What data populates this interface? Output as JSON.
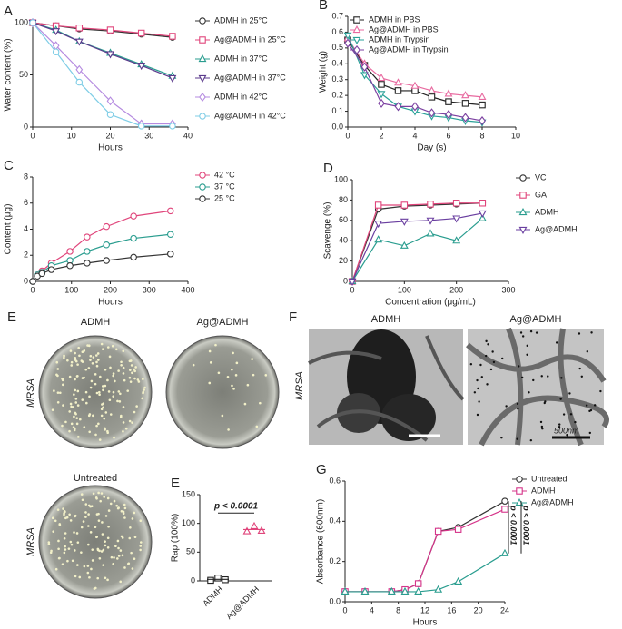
{
  "chart_data": [
    {
      "type": "line",
      "panel": "A",
      "xlabel": "Hours",
      "ylabel": "Water content (%)",
      "xlim": [
        0,
        40
      ],
      "xticks": [
        0,
        10,
        20,
        30,
        40
      ],
      "ylim": [
        0,
        100
      ],
      "yticks": [
        0,
        50,
        100
      ],
      "legend": "outside right",
      "x": [
        0,
        6,
        12,
        20,
        28,
        36
      ],
      "series": [
        {
          "name": "ADMH in 25°C",
          "color": "#333333",
          "marker": "circle",
          "values": [
            100,
            97,
            94,
            92,
            89,
            86
          ]
        },
        {
          "name": "Ag@ADMH in 25°C",
          "color": "#e0457b",
          "marker": "square",
          "values": [
            100,
            97,
            95,
            93,
            90,
            87
          ]
        },
        {
          "name": "ADMH in 37°C",
          "color": "#2a9d8f",
          "marker": "triangle",
          "values": [
            100,
            93,
            82,
            71,
            60,
            49
          ]
        },
        {
          "name": "Ag@ADMH in 37°C",
          "color": "#5b3a8c",
          "marker": "triangle-down",
          "values": [
            100,
            92,
            82,
            70,
            59,
            47
          ]
        },
        {
          "name": "ADMH in 42°C",
          "color": "#b58be0",
          "marker": "diamond",
          "values": [
            100,
            78,
            55,
            25,
            3,
            3
          ]
        },
        {
          "name": "Ag@ADMH in 42°C",
          "color": "#7fcde6",
          "marker": "circle",
          "values": [
            100,
            72,
            43,
            12,
            1,
            1
          ]
        }
      ]
    },
    {
      "type": "line",
      "panel": "B",
      "xlabel": "Day (s)",
      "ylabel": "Weight (g)",
      "xlim": [
        0,
        10
      ],
      "xticks": [
        0,
        2,
        4,
        6,
        8,
        10
      ],
      "ylim": [
        0,
        0.7
      ],
      "yticks": [
        {
          "value": 0,
          "label": "0.0"
        },
        0.1,
        0.2,
        0.3,
        0.4,
        0.5,
        0.6,
        0.7
      ],
      "legend": "upper left",
      "x": [
        0,
        1,
        2,
        3,
        4,
        5,
        6,
        7,
        8
      ],
      "series": [
        {
          "name": "ADMH in PBS",
          "color": "#222222",
          "marker": "square",
          "values": [
            0.55,
            0.39,
            0.27,
            0.23,
            0.23,
            0.19,
            0.16,
            0.15,
            0.14
          ]
        },
        {
          "name": "Ag@ADMH in PBS",
          "color": "#e86aa0",
          "marker": "triangle",
          "values": [
            0.56,
            0.4,
            0.31,
            0.28,
            0.26,
            0.23,
            0.21,
            0.2,
            0.19
          ]
        },
        {
          "name": "ADMH in Trypsin",
          "color": "#2aa198",
          "marker": "triangle-down",
          "values": [
            0.58,
            0.33,
            0.21,
            0.13,
            0.1,
            0.07,
            0.06,
            0.04,
            0.03
          ]
        },
        {
          "name": "Ag@ADMH in Trypsin",
          "color": "#7b3fa0",
          "marker": "diamond",
          "values": [
            0.53,
            0.38,
            0.15,
            0.13,
            0.13,
            0.09,
            0.08,
            0.06,
            0.04
          ]
        }
      ]
    },
    {
      "type": "line",
      "panel": "C",
      "xlabel": "Hours",
      "ylabel": "Content (μg)",
      "xlim": [
        0,
        400
      ],
      "xticks": [
        0,
        100,
        200,
        300,
        400
      ],
      "ylim": [
        0,
        8
      ],
      "yticks": [
        0,
        2,
        4,
        6,
        8
      ],
      "legend": "outside right",
      "x": [
        0,
        12,
        24,
        48,
        96,
        140,
        190,
        260,
        355
      ],
      "series": [
        {
          "name": "42 °C",
          "color": "#e0457b",
          "marker": "circle",
          "values": [
            0,
            0.5,
            0.8,
            1.4,
            2.3,
            3.4,
            4.2,
            5.0,
            5.4
          ]
        },
        {
          "name": "37 °C",
          "color": "#2a9d8f",
          "marker": "circle",
          "values": [
            0,
            0.5,
            0.7,
            1.2,
            1.6,
            2.3,
            2.8,
            3.3,
            3.6
          ]
        },
        {
          "name": "25 °C",
          "color": "#333333",
          "marker": "circle",
          "values": [
            0,
            0.4,
            0.6,
            0.9,
            1.2,
            1.4,
            1.6,
            1.85,
            2.1
          ]
        }
      ]
    },
    {
      "type": "line",
      "panel": "D",
      "xlabel": "Concentration (μg/mL)",
      "ylabel": "Scavenge (%)",
      "xlim": [
        0,
        300
      ],
      "xticks": [
        0,
        100,
        200,
        300
      ],
      "ylim": [
        0,
        100
      ],
      "yticks": [
        0,
        20,
        40,
        60,
        80,
        100
      ],
      "legend": "outside right",
      "x": [
        0,
        50,
        100,
        150,
        200,
        250
      ],
      "series": [
        {
          "name": "VC",
          "color": "#333333",
          "marker": "circle",
          "values": [
            0,
            71,
            74,
            75,
            76,
            77
          ]
        },
        {
          "name": "GA",
          "color": "#e0457b",
          "marker": "square",
          "values": [
            0,
            75,
            75,
            76,
            77,
            77
          ]
        },
        {
          "name": "ADMH",
          "color": "#2a9d8f",
          "marker": "triangle",
          "values": [
            0,
            41,
            35,
            47,
            40,
            62
          ]
        },
        {
          "name": "Ag@ADMH",
          "color": "#6a3fa0",
          "marker": "triangle-down",
          "values": [
            0,
            57,
            59,
            60,
            62,
            67
          ]
        }
      ]
    },
    {
      "type": "dot",
      "panel": "E",
      "ylabel": "Rap (100%)",
      "ylim": [
        0,
        150
      ],
      "yticks": [
        0,
        50,
        100,
        150
      ],
      "annotation": "p < 0.0001",
      "categories": [
        "ADMH",
        "Ag@ADMH"
      ],
      "colors": [
        "#222222",
        "#e0457b"
      ],
      "markers": [
        "square",
        "triangle"
      ],
      "values": [
        [
          1,
          5,
          2
        ],
        [
          86,
          95,
          87
        ]
      ]
    },
    {
      "type": "line",
      "panel": "G",
      "xlabel": "Hours",
      "ylabel": "Absorbance (600nm)",
      "xlim": [
        0,
        24
      ],
      "xticks": [
        0,
        4,
        8,
        12,
        16,
        20,
        24
      ],
      "ylim": [
        0,
        0.6
      ],
      "yticks": [
        {
          "value": 0,
          "label": "0.0"
        },
        0.2,
        0.4,
        0.6
      ],
      "legend": "outside right",
      "annotations": [
        "p < 0.0001",
        "p < 0.0001"
      ],
      "x": [
        0,
        3,
        7,
        9,
        11,
        14,
        17,
        24
      ],
      "series": [
        {
          "name": "Untreated",
          "color": "#333333",
          "marker": "circle",
          "values": [
            0.05,
            0.05,
            0.05,
            0.06,
            0.09,
            0.35,
            0.37,
            0.5
          ]
        },
        {
          "name": "ADMH",
          "color": "#d6348a",
          "marker": "square",
          "values": [
            0.05,
            0.05,
            0.05,
            0.06,
            0.09,
            0.35,
            0.36,
            0.46
          ]
        },
        {
          "name": "Ag@ADMH",
          "color": "#2a9d8f",
          "marker": "triangle",
          "values": [
            0.05,
            0.05,
            0.05,
            0.05,
            0.05,
            0.06,
            0.1,
            0.24
          ]
        }
      ]
    }
  ],
  "images": {
    "plates": {
      "panel": "E",
      "top_left": "ADMH",
      "top_right": "Ag@ADMH",
      "bottom": "Untreated",
      "strain": "MRSA",
      "strain_bottom": "MRSA"
    },
    "tem": {
      "panel": "F",
      "left": "ADMH",
      "right": "Ag@ADMH",
      "strain": "MRSA",
      "scale": "500nm"
    }
  }
}
